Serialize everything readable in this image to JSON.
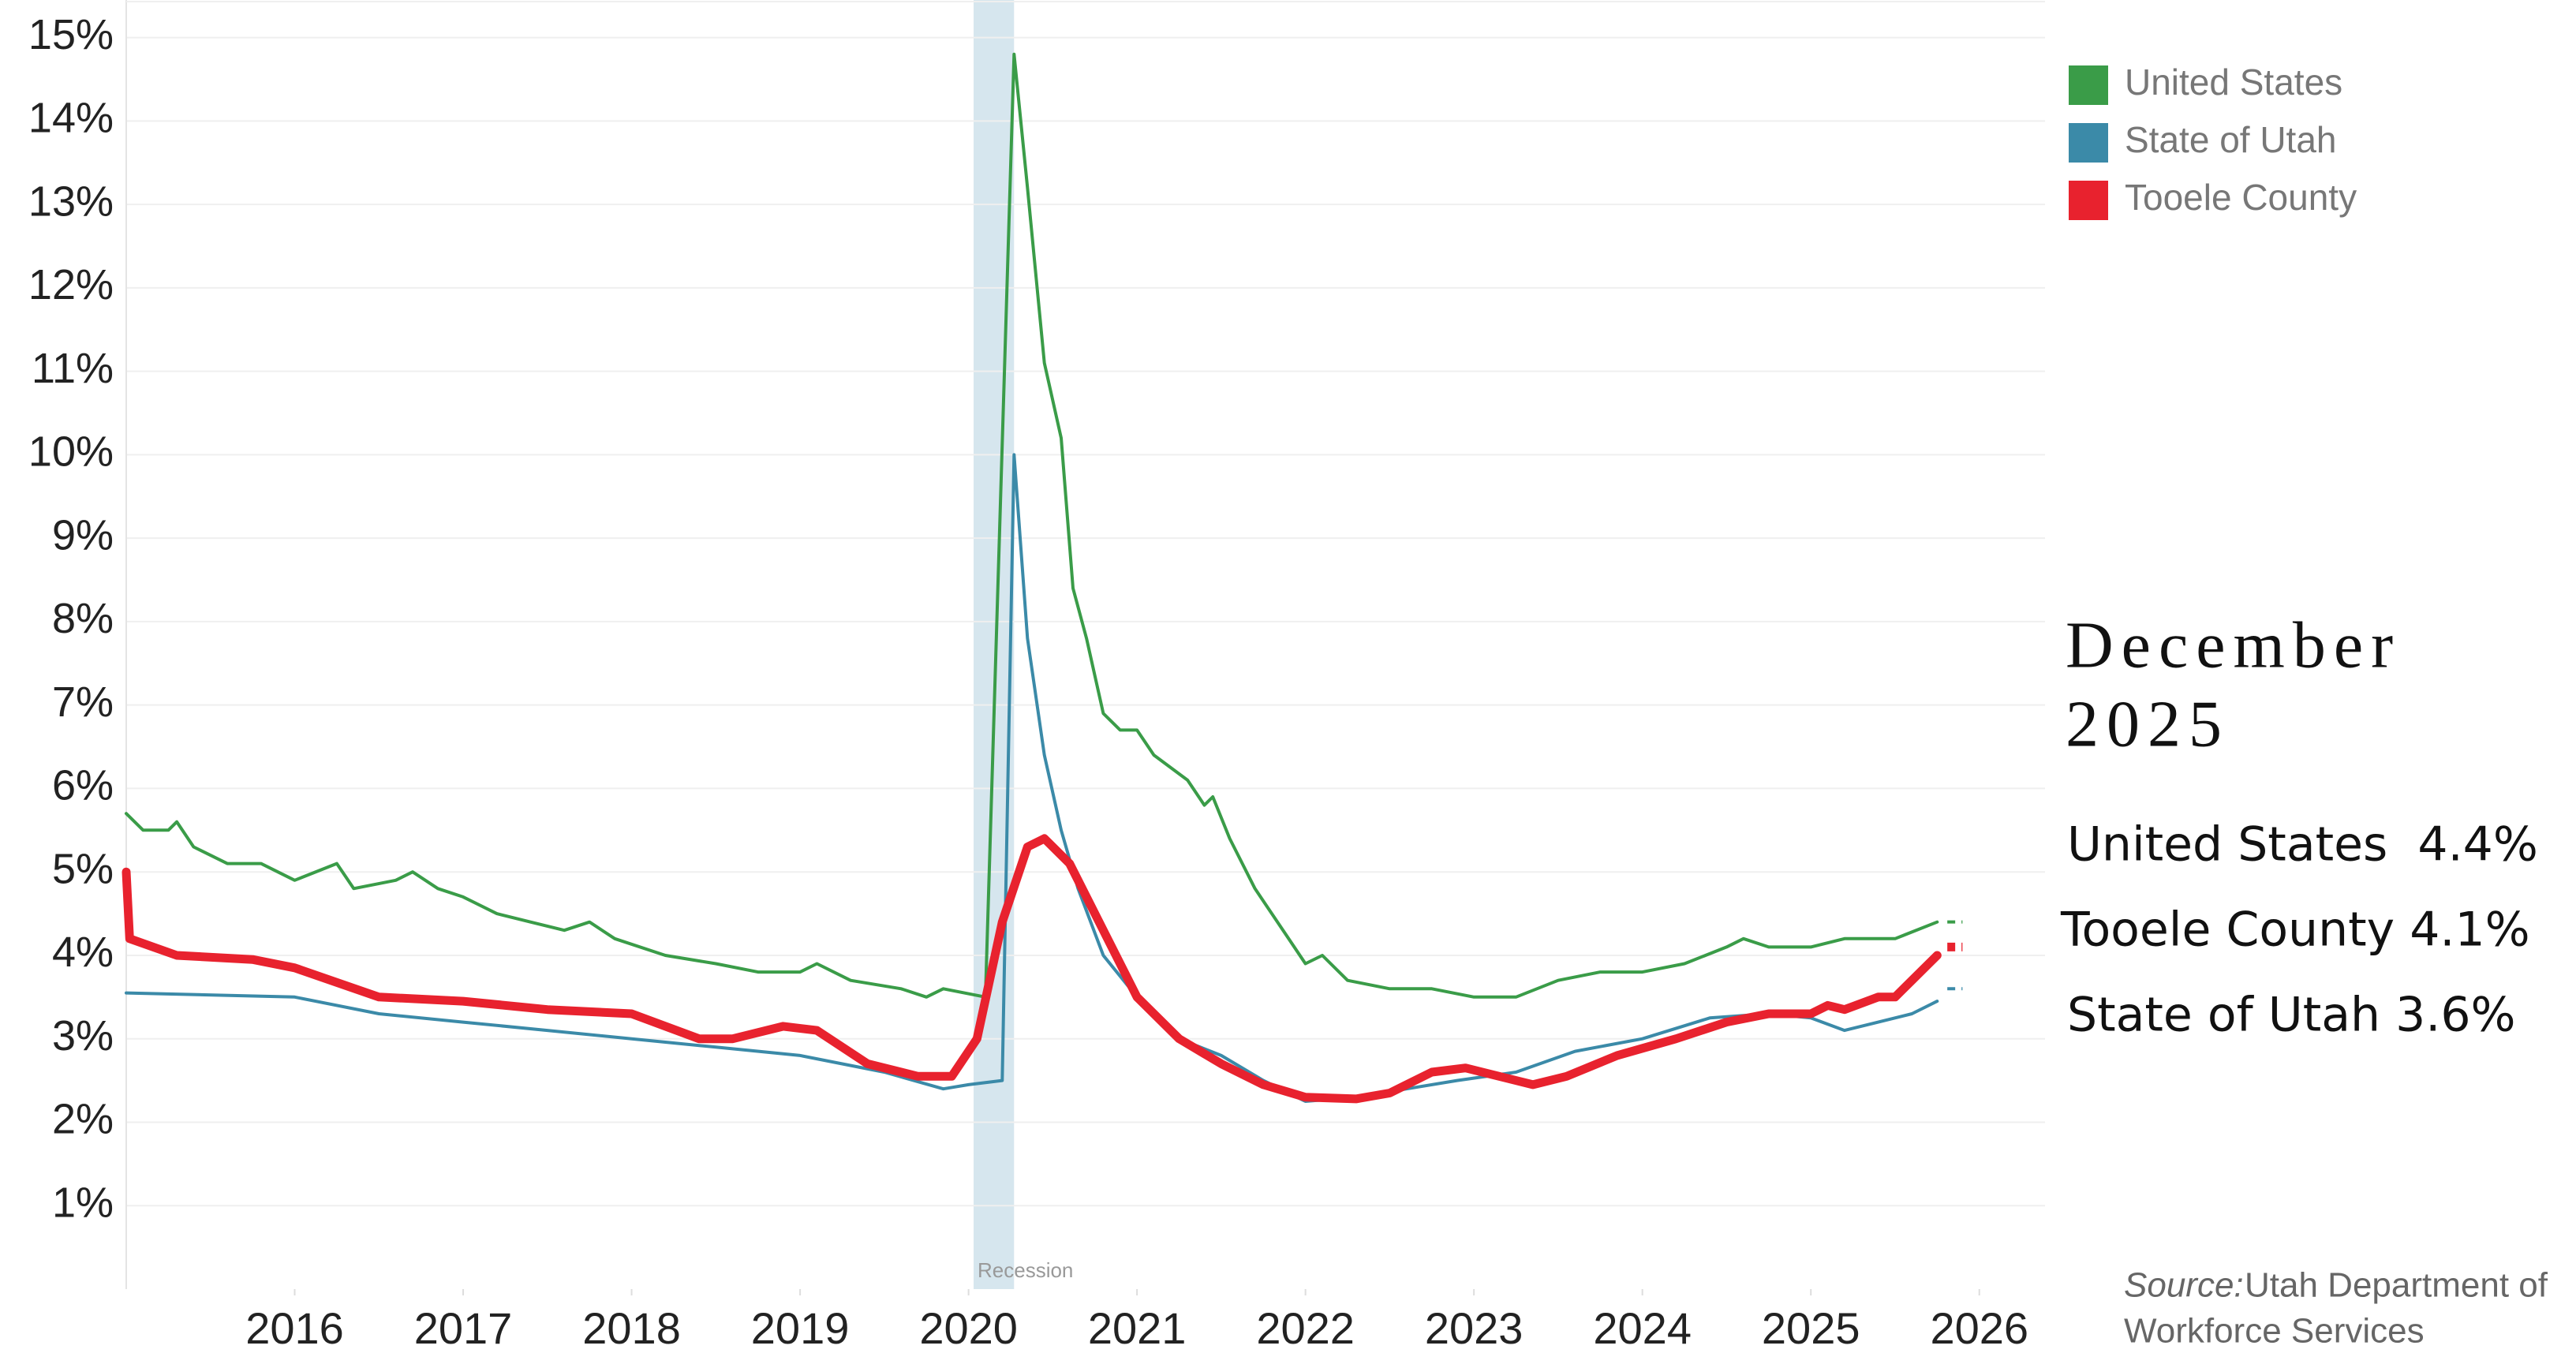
{
  "chart_data": {
    "type": "line",
    "xlim": [
      2015.0,
      2026.39
    ],
    "ylim": [
      0,
      15.45
    ],
    "xticks": [
      2016,
      2017,
      2018,
      2019,
      2020,
      2021,
      2022,
      2023,
      2024,
      2025,
      2026
    ],
    "yticks": [
      {
        "value": 1,
        "label": "1%"
      },
      {
        "value": 2,
        "label": "2%"
      },
      {
        "value": 3,
        "label": "3%"
      },
      {
        "value": 4,
        "label": "4%"
      },
      {
        "value": 5,
        "label": "5%"
      },
      {
        "value": 6,
        "label": "6%"
      },
      {
        "value": 7,
        "label": "7%"
      },
      {
        "value": 8,
        "label": "8%"
      },
      {
        "value": 9,
        "label": "9%"
      },
      {
        "value": 10,
        "label": "10%"
      },
      {
        "value": 11,
        "label": "11%"
      },
      {
        "value": 12,
        "label": "12%"
      },
      {
        "value": 13,
        "label": "13%"
      },
      {
        "value": 14,
        "label": "14%"
      },
      {
        "value": 15,
        "label": "15%"
      }
    ],
    "grid": true,
    "legend": "top-right",
    "recession": {
      "label": "Recession",
      "start": 2020.03,
      "end": 2020.27,
      "color": "#d6e6ee"
    },
    "latest_x": [
      2025.81,
      2025.9
    ],
    "series": [
      {
        "name": "United States",
        "color": "#3a9c48",
        "width": 4,
        "latest": 4.4,
        "x": [
          2015.0,
          2015.1,
          2015.25,
          2015.3,
          2015.4,
          2015.6,
          2015.8,
          2016.0,
          2016.25,
          2016.35,
          2016.6,
          2016.7,
          2016.85,
          2017.0,
          2017.2,
          2017.4,
          2017.6,
          2017.75,
          2017.9,
          2018.2,
          2018.5,
          2018.75,
          2019.0,
          2019.1,
          2019.3,
          2019.6,
          2019.75,
          2019.85,
          2020.1,
          2020.27,
          2020.35,
          2020.45,
          2020.55,
          2020.62,
          2020.7,
          2020.8,
          2020.9,
          2021.0,
          2021.1,
          2021.3,
          2021.4,
          2021.45,
          2021.55,
          2021.7,
          2021.9,
          2022.0,
          2022.1,
          2022.25,
          2022.5,
          2022.75,
          2023.0,
          2023.25,
          2023.5,
          2023.75,
          2024.0,
          2024.25,
          2024.5,
          2024.6,
          2024.75,
          2025.0,
          2025.2,
          2025.5,
          2025.75
        ],
        "values": [
          5.7,
          5.5,
          5.5,
          5.6,
          5.3,
          5.1,
          5.1,
          4.9,
          5.1,
          4.8,
          4.9,
          5.0,
          4.8,
          4.7,
          4.5,
          4.4,
          4.3,
          4.4,
          4.2,
          4.0,
          3.9,
          3.8,
          3.8,
          3.9,
          3.7,
          3.6,
          3.5,
          3.6,
          3.5,
          14.8,
          13.2,
          11.1,
          10.2,
          8.4,
          7.8,
          6.9,
          6.7,
          6.7,
          6.4,
          6.1,
          5.8,
          5.9,
          5.4,
          4.8,
          4.2,
          3.9,
          4.0,
          3.7,
          3.6,
          3.6,
          3.5,
          3.5,
          3.7,
          3.8,
          3.8,
          3.9,
          4.1,
          4.2,
          4.1,
          4.1,
          4.2,
          4.2,
          4.4
        ]
      },
      {
        "name": "State of Utah",
        "color": "#3b8aa8",
        "width": 4,
        "latest": 3.6,
        "x": [
          2015.0,
          2016.0,
          2016.5,
          2017.0,
          2017.5,
          2018.0,
          2018.5,
          2019.0,
          2019.5,
          2019.85,
          2020.0,
          2020.2,
          2020.27,
          2020.35,
          2020.45,
          2020.55,
          2020.65,
          2020.8,
          2021.0,
          2021.25,
          2021.5,
          2021.75,
          2022.0,
          2022.3,
          2022.6,
          2022.9,
          2023.25,
          2023.6,
          2024.0,
          2024.4,
          2024.75,
          2025.0,
          2025.2,
          2025.4,
          2025.6,
          2025.75
        ],
        "values": [
          3.55,
          3.5,
          3.3,
          3.2,
          3.1,
          3.0,
          2.9,
          2.8,
          2.6,
          2.4,
          2.45,
          2.5,
          10.0,
          7.8,
          6.4,
          5.5,
          4.8,
          4.0,
          3.5,
          3.0,
          2.8,
          2.5,
          2.25,
          2.3,
          2.4,
          2.5,
          2.6,
          2.85,
          3.0,
          3.25,
          3.3,
          3.25,
          3.1,
          3.2,
          3.3,
          3.45
        ]
      },
      {
        "name": "Tooele County",
        "color": "#e8222e",
        "width": 11,
        "latest": 4.1,
        "x": [
          2015.0,
          2015.02,
          2015.3,
          2015.75,
          2016.0,
          2016.5,
          2017.0,
          2017.5,
          2018.0,
          2018.4,
          2018.6,
          2018.9,
          2019.1,
          2019.4,
          2019.7,
          2019.9,
          2020.05,
          2020.2,
          2020.35,
          2020.45,
          2020.6,
          2020.8,
          2021.0,
          2021.25,
          2021.5,
          2021.75,
          2022.0,
          2022.3,
          2022.5,
          2022.75,
          2022.95,
          2023.15,
          2023.35,
          2023.55,
          2023.85,
          2024.2,
          2024.5,
          2024.75,
          2025.0,
          2025.1,
          2025.2,
          2025.4,
          2025.5,
          2025.6,
          2025.75
        ],
        "values": [
          5.0,
          4.2,
          4.0,
          3.95,
          3.85,
          3.5,
          3.45,
          3.35,
          3.3,
          3.0,
          3.0,
          3.15,
          3.1,
          2.7,
          2.55,
          2.55,
          3.0,
          4.4,
          5.3,
          5.4,
          5.1,
          4.3,
          3.5,
          3.0,
          2.7,
          2.45,
          2.3,
          2.28,
          2.35,
          2.6,
          2.65,
          2.55,
          2.45,
          2.55,
          2.8,
          3.0,
          3.2,
          3.3,
          3.3,
          3.4,
          3.35,
          3.5,
          3.5,
          3.7,
          4.0
        ]
      }
    ]
  },
  "annotation": {
    "title_lines": [
      "December",
      "2025"
    ],
    "items": [
      "United States  4.4%",
      "Tooele County 4.1%",
      "State of Utah 3.6%"
    ]
  },
  "source": {
    "label": "Source:",
    "lines": [
      "Utah Department of",
      "Workforce Services"
    ]
  }
}
